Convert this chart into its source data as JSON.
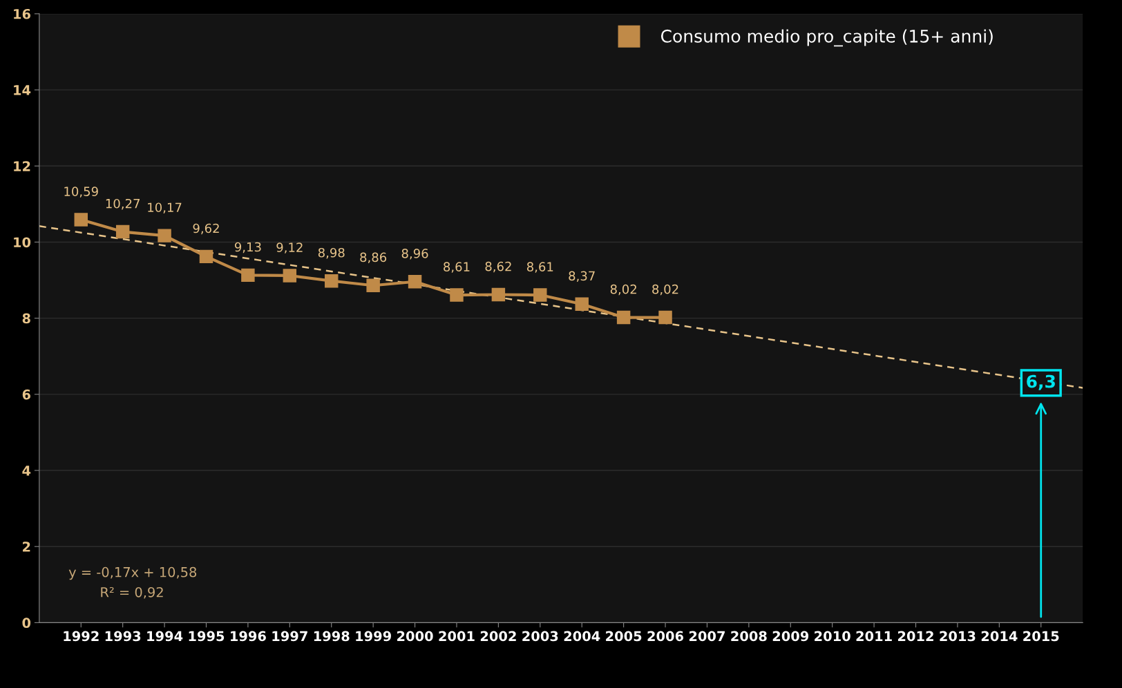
{
  "chart_data": {
    "type": "line",
    "x": [
      1992,
      1993,
      1994,
      1995,
      1996,
      1997,
      1998,
      1999,
      2000,
      2001,
      2002,
      2003,
      2004,
      2005,
      2006
    ],
    "series": [
      {
        "name": "Consumo medio pro_capite (15+ anni)",
        "color": "#c08a48",
        "values": [
          10.59,
          10.27,
          10.17,
          9.62,
          9.13,
          9.12,
          8.98,
          8.86,
          8.96,
          8.61,
          8.62,
          8.61,
          8.37,
          8.02,
          8.02
        ],
        "marker": "square",
        "line_style": "solid",
        "value_labels": [
          "10,59",
          "10,27",
          "10,17",
          "9,62",
          "9,13",
          "9,12",
          "8,98",
          "8,86",
          "8,96",
          "8,61",
          "8,62",
          "8,61",
          "8,37",
          "8,02",
          "8,02"
        ]
      },
      {
        "type": "line",
        "color": "#e8c48a",
        "x": [
          1991,
          2016
        ],
        "values": [
          10.42,
          6.17
        ],
        "line_style": "dashed",
        "marker": "none"
      }
    ],
    "xlim": [
      1991,
      2016
    ],
    "xticks": [
      1992,
      1993,
      1994,
      1995,
      1996,
      1997,
      1998,
      1999,
      2000,
      2001,
      2002,
      2003,
      2004,
      2005,
      2006,
      2007,
      2008,
      2009,
      2010,
      2011,
      2012,
      2013,
      2014,
      2015
    ],
    "ylim": [
      0,
      16
    ],
    "yticks": [
      0,
      2,
      4,
      6,
      8,
      10,
      12,
      14,
      16
    ],
    "grid": "y",
    "legend": "top right",
    "annotations": [
      {
        "text": "6,3",
        "x": 2015,
        "y": 6.3
      },
      "y = -0,17x + 10,58",
      "R² = 0,92"
    ]
  }
}
